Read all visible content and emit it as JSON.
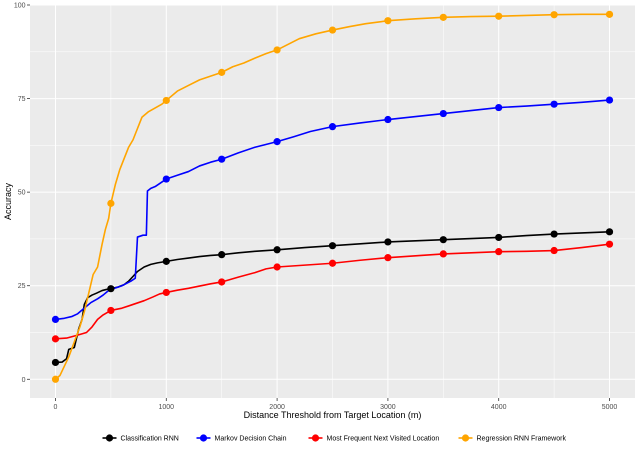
{
  "chart_data": {
    "type": "line",
    "title": "",
    "xlabel": "Distance Threshold from Target Location (m)",
    "ylabel": "Accuracy",
    "xlim": [
      -230,
      5230
    ],
    "ylim": [
      -5,
      100
    ],
    "x_ticks": [
      0,
      1000,
      2000,
      3000,
      4000,
      5000
    ],
    "y_ticks": [
      0,
      25,
      50,
      75,
      100
    ],
    "grid": true,
    "legend_position": "bottom",
    "panel_background": "#ebebeb",
    "series": [
      {
        "name": "Classification RNN",
        "color": "#000000",
        "markers_x": [
          0,
          500,
          1000,
          1500,
          2000,
          2500,
          3000,
          3500,
          4000,
          4500,
          5000
        ],
        "markers_y": [
          4.5,
          24.2,
          31.5,
          33.3,
          34.6,
          35.7,
          36.7,
          37.3,
          37.9,
          38.8,
          39.4
        ],
        "line": [
          [
            0,
            4.5
          ],
          [
            60,
            4.6
          ],
          [
            100,
            5.5
          ],
          [
            120,
            8
          ],
          [
            170,
            8.5
          ],
          [
            210,
            13.5
          ],
          [
            240,
            16
          ],
          [
            260,
            20
          ],
          [
            290,
            21.8
          ],
          [
            330,
            22.5
          ],
          [
            370,
            23
          ],
          [
            420,
            23.7
          ],
          [
            460,
            24
          ],
          [
            500,
            24.2
          ],
          [
            560,
            24.6
          ],
          [
            620,
            25.3
          ],
          [
            660,
            26.2
          ],
          [
            700,
            27.5
          ],
          [
            740,
            28.8
          ],
          [
            800,
            30
          ],
          [
            860,
            30.7
          ],
          [
            920,
            31.1
          ],
          [
            1000,
            31.5
          ],
          [
            1100,
            32
          ],
          [
            1200,
            32.4
          ],
          [
            1300,
            32.8
          ],
          [
            1400,
            33.1
          ],
          [
            1500,
            33.3
          ],
          [
            1650,
            33.8
          ],
          [
            1800,
            34.2
          ],
          [
            2000,
            34.6
          ],
          [
            2250,
            35.2
          ],
          [
            2500,
            35.7
          ],
          [
            2750,
            36.2
          ],
          [
            3000,
            36.7
          ],
          [
            3250,
            37
          ],
          [
            3500,
            37.3
          ],
          [
            3750,
            37.6
          ],
          [
            4000,
            37.9
          ],
          [
            4250,
            38.4
          ],
          [
            4500,
            38.8
          ],
          [
            4750,
            39.1
          ],
          [
            5000,
            39.4
          ]
        ]
      },
      {
        "name": "Markov Decision Chain",
        "color": "#0000ff",
        "markers_x": [
          0,
          1000,
          1500,
          2000,
          2500,
          3000,
          3500,
          4000,
          4500,
          5000
        ],
        "markers_y": [
          16,
          53.5,
          58.8,
          63.5,
          67.5,
          69.4,
          71,
          72.6,
          73.5,
          74.6
        ],
        "line": [
          [
            0,
            16
          ],
          [
            80,
            16.3
          ],
          [
            150,
            16.8
          ],
          [
            200,
            17.5
          ],
          [
            260,
            19
          ],
          [
            320,
            20.5
          ],
          [
            380,
            21.5
          ],
          [
            430,
            22.5
          ],
          [
            470,
            23.5
          ],
          [
            530,
            24.3
          ],
          [
            600,
            25
          ],
          [
            680,
            26.2
          ],
          [
            720,
            27
          ],
          [
            740,
            38
          ],
          [
            790,
            38.5
          ],
          [
            820,
            38.5
          ],
          [
            830,
            50.3
          ],
          [
            860,
            51
          ],
          [
            900,
            51.5
          ],
          [
            940,
            52.3
          ],
          [
            1000,
            53.5
          ],
          [
            1100,
            54.5
          ],
          [
            1200,
            55.5
          ],
          [
            1300,
            57
          ],
          [
            1400,
            58
          ],
          [
            1500,
            58.8
          ],
          [
            1650,
            60.5
          ],
          [
            1800,
            62
          ],
          [
            2000,
            63.5
          ],
          [
            2150,
            64.8
          ],
          [
            2300,
            66.2
          ],
          [
            2500,
            67.5
          ],
          [
            2750,
            68.5
          ],
          [
            3000,
            69.4
          ],
          [
            3250,
            70.2
          ],
          [
            3500,
            71
          ],
          [
            3750,
            71.8
          ],
          [
            4000,
            72.6
          ],
          [
            4250,
            73
          ],
          [
            4500,
            73.5
          ],
          [
            4750,
            74
          ],
          [
            5000,
            74.6
          ]
        ]
      },
      {
        "name": "Most Frequent Next Visited Location",
        "color": "#ff0000",
        "markers_x": [
          0,
          500,
          1000,
          1500,
          2000,
          2500,
          3000,
          3500,
          4000,
          4500,
          5000
        ],
        "markers_y": [
          10.8,
          18.4,
          23.2,
          26,
          30,
          31,
          32.5,
          33.5,
          34.1,
          34.4,
          36.1
        ],
        "line": [
          [
            0,
            10.8
          ],
          [
            100,
            11
          ],
          [
            200,
            11.8
          ],
          [
            280,
            12.5
          ],
          [
            330,
            14
          ],
          [
            380,
            16
          ],
          [
            430,
            17.2
          ],
          [
            500,
            18.4
          ],
          [
            600,
            19
          ],
          [
            700,
            20
          ],
          [
            800,
            21
          ],
          [
            880,
            22
          ],
          [
            940,
            22.8
          ],
          [
            1000,
            23.2
          ],
          [
            1100,
            23.8
          ],
          [
            1200,
            24.3
          ],
          [
            1300,
            24.9
          ],
          [
            1400,
            25.5
          ],
          [
            1500,
            26
          ],
          [
            1650,
            27.3
          ],
          [
            1800,
            28.5
          ],
          [
            1900,
            29.5
          ],
          [
            2000,
            30
          ],
          [
            2250,
            30.5
          ],
          [
            2500,
            31
          ],
          [
            2750,
            31.8
          ],
          [
            3000,
            32.5
          ],
          [
            3250,
            33
          ],
          [
            3500,
            33.5
          ],
          [
            3750,
            33.8
          ],
          [
            4000,
            34.1
          ],
          [
            4250,
            34.2
          ],
          [
            4500,
            34.4
          ],
          [
            4750,
            35.2
          ],
          [
            5000,
            36.1
          ]
        ]
      },
      {
        "name": "Regression RNN Framework",
        "color": "#ffa500",
        "markers_x": [
          0,
          500,
          1000,
          1500,
          2000,
          2500,
          3000,
          3500,
          4000,
          4500,
          5000
        ],
        "markers_y": [
          0,
          47,
          74.5,
          82,
          88,
          93.3,
          95.8,
          96.7,
          97,
          97.4,
          97.5
        ],
        "line": [
          [
            0,
            0
          ],
          [
            40,
            1
          ],
          [
            80,
            3.5
          ],
          [
            120,
            6
          ],
          [
            170,
            10
          ],
          [
            220,
            14
          ],
          [
            260,
            18
          ],
          [
            300,
            23
          ],
          [
            340,
            28
          ],
          [
            380,
            30
          ],
          [
            420,
            36
          ],
          [
            450,
            40
          ],
          [
            480,
            43
          ],
          [
            500,
            47
          ],
          [
            540,
            52
          ],
          [
            580,
            56
          ],
          [
            620,
            59
          ],
          [
            660,
            62
          ],
          [
            700,
            64
          ],
          [
            740,
            67
          ],
          [
            780,
            70
          ],
          [
            840,
            71.5
          ],
          [
            900,
            72.5
          ],
          [
            960,
            73.5
          ],
          [
            1000,
            74.5
          ],
          [
            1100,
            77
          ],
          [
            1200,
            78.5
          ],
          [
            1300,
            80
          ],
          [
            1400,
            81
          ],
          [
            1500,
            82
          ],
          [
            1600,
            83.5
          ],
          [
            1700,
            84.5
          ],
          [
            1800,
            85.8
          ],
          [
            1900,
            87
          ],
          [
            2000,
            88
          ],
          [
            2100,
            89.5
          ],
          [
            2200,
            91
          ],
          [
            2350,
            92.3
          ],
          [
            2500,
            93.3
          ],
          [
            2650,
            94.2
          ],
          [
            2800,
            95
          ],
          [
            3000,
            95.8
          ],
          [
            3250,
            96.3
          ],
          [
            3500,
            96.7
          ],
          [
            3750,
            96.9
          ],
          [
            4000,
            97
          ],
          [
            4250,
            97.2
          ],
          [
            4500,
            97.4
          ],
          [
            4750,
            97.5
          ],
          [
            5000,
            97.5
          ]
        ]
      }
    ]
  }
}
